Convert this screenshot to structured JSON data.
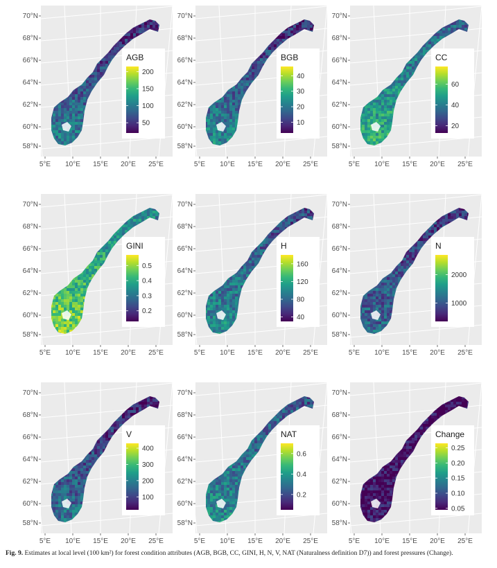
{
  "chart_data": [
    {
      "type": "map",
      "title": "",
      "legend_title": "AGB",
      "legend_ticks": [
        200,
        150,
        100,
        50
      ],
      "legend_range": [
        20,
        215
      ],
      "x_ticks": [
        "5°E",
        "10°E",
        "15°E",
        "20°E",
        "25°E"
      ],
      "y_ticks": [
        "70°N",
        "68°N",
        "66°N",
        "64°N",
        "62°N",
        "60°N",
        "58°N"
      ],
      "colormap": "viridis",
      "level_south": 0.45,
      "level_north": 0.1
    },
    {
      "type": "map",
      "title": "",
      "legend_title": "BGB",
      "legend_ticks": [
        40,
        30,
        20,
        10
      ],
      "legend_range": [
        3,
        46
      ],
      "x_ticks": [
        "5°E",
        "10°E",
        "15°E",
        "20°E",
        "25°E"
      ],
      "y_ticks": [
        "70°N",
        "68°N",
        "66°N",
        "64°N",
        "62°N",
        "60°N",
        "58°N"
      ],
      "colormap": "viridis",
      "level_south": 0.5,
      "level_north": 0.1
    },
    {
      "type": "map",
      "title": "",
      "legend_title": "CC",
      "legend_ticks": [
        60,
        40,
        20
      ],
      "legend_range": [
        13,
        77
      ],
      "x_ticks": [
        "5°E",
        "10°E",
        "15°E",
        "20°E",
        "25°E"
      ],
      "y_ticks": [
        "70°N",
        "68°N",
        "66°N",
        "64°N",
        "62°N",
        "60°N",
        "58°N"
      ],
      "colormap": "viridis",
      "level_south": 0.65,
      "level_north": 0.3
    },
    {
      "type": "map",
      "title": "",
      "legend_title": "GINI",
      "legend_ticks": [
        0.5,
        0.4,
        0.3,
        0.2
      ],
      "legend_range": [
        0.13,
        0.57
      ],
      "x_ticks": [
        "5°E",
        "10°E",
        "15°E",
        "20°E",
        "25°E"
      ],
      "y_ticks": [
        "70°N",
        "68°N",
        "66°N",
        "64°N",
        "62°N",
        "60°N",
        "58°N"
      ],
      "colormap": "viridis",
      "level_south": 0.85,
      "level_north": 0.4
    },
    {
      "type": "map",
      "title": "",
      "legend_title": "H",
      "legend_ticks": [
        160,
        120,
        80,
        40
      ],
      "legend_range": [
        30,
        180
      ],
      "x_ticks": [
        "5°E",
        "10°E",
        "15°E",
        "20°E",
        "25°E"
      ],
      "y_ticks": [
        "70°N",
        "68°N",
        "66°N",
        "64°N",
        "62°N",
        "60°N",
        "58°N"
      ],
      "colormap": "viridis",
      "level_south": 0.5,
      "level_north": 0.2
    },
    {
      "type": "map",
      "title": "",
      "legend_title": "N",
      "legend_ticks": [
        2000,
        1000
      ],
      "legend_range": [
        350,
        2700
      ],
      "x_ticks": [
        "5°E",
        "10°E",
        "15°E",
        "20°E",
        "25°E"
      ],
      "y_ticks": [
        "70°N",
        "68°N",
        "66°N",
        "64°N",
        "62°N",
        "60°N",
        "58°N"
      ],
      "colormap": "viridis",
      "level_south": 0.35,
      "level_north": 0.15
    },
    {
      "type": "map",
      "title": "",
      "legend_title": "V",
      "legend_ticks": [
        400,
        300,
        200,
        100
      ],
      "legend_range": [
        20,
        430
      ],
      "x_ticks": [
        "5°E",
        "10°E",
        "15°E",
        "20°E",
        "25°E"
      ],
      "y_ticks": [
        "70°N",
        "68°N",
        "66°N",
        "64°N",
        "62°N",
        "60°N",
        "58°N"
      ],
      "colormap": "viridis",
      "level_south": 0.4,
      "level_north": 0.08
    },
    {
      "type": "map",
      "title": "",
      "legend_title": "NAT",
      "legend_ticks": [
        0.6,
        0.4,
        0.2
      ],
      "legend_range": [
        0.05,
        0.7
      ],
      "x_ticks": [
        "5°E",
        "10°E",
        "15°E",
        "20°E",
        "25°E"
      ],
      "y_ticks": [
        "70°N",
        "68°N",
        "66°N",
        "64°N",
        "62°N",
        "60°N",
        "58°N"
      ],
      "colormap": "viridis",
      "level_south": 0.5,
      "level_north": 0.25
    },
    {
      "type": "map",
      "title": "",
      "legend_title": "Change",
      "legend_ticks": [
        0.25,
        0.2,
        0.15,
        0.1,
        0.05
      ],
      "legend_range": [
        0.045,
        0.265
      ],
      "x_ticks": [
        "5°E",
        "10°E",
        "15°E",
        "20°E",
        "25°E"
      ],
      "y_ticks": [
        "70°N",
        "68°N",
        "66°N",
        "64°N",
        "62°N",
        "60°N",
        "58°N"
      ],
      "colormap": "viridis",
      "level_south": 0.05,
      "level_north": 0.02
    }
  ],
  "caption": {
    "label": "Fig. 9.",
    "text": "Estimates at local level (100 km²) for forest condition attributes (AGB, BGB, CC, GINI, H, N, V, NAT (Naturalness definition D7)) and forest pressures (Change)."
  },
  "colors": {
    "panel_bg": "#ebebeb",
    "grid": "#ffffff",
    "viridis_low": "#440154",
    "viridis_mid": "#21918c",
    "viridis_high": "#fde725"
  }
}
